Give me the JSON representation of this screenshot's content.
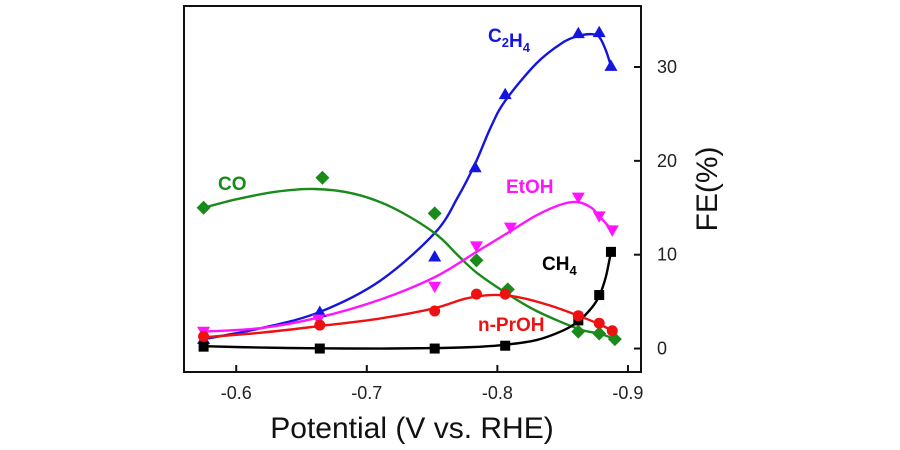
{
  "chart_data": {
    "type": "line",
    "xlabel": "Potential (V vs. RHE)",
    "ylabel": "FE(%)",
    "xlim": [
      -0.56,
      -0.91
    ],
    "ylim": [
      -2.5,
      36.5
    ],
    "x_ticks": [
      -0.6,
      -0.7,
      -0.8,
      -0.9
    ],
    "x_tick_labels": [
      "-0.6",
      "-0.7",
      "-0.8",
      "-0.9"
    ],
    "y_ticks": [
      0,
      10,
      20,
      30
    ],
    "y_tick_labels": [
      "0",
      "10",
      "20",
      "30"
    ],
    "y_axis_side": "right",
    "grid": false,
    "legend": "none (series labeled inline)",
    "series": [
      {
        "name": "C2H4",
        "label_main": "C",
        "label_parts": [
          {
            "t": "C",
            "sub": false
          },
          {
            "t": "2",
            "sub": true
          },
          {
            "t": "H",
            "sub": false
          },
          {
            "t": "4",
            "sub": true
          }
        ],
        "color": "#1515e0",
        "marker": "triangle-up",
        "x": [
          -0.575,
          -0.664,
          -0.752,
          -0.783,
          -0.806,
          -0.862,
          -0.878,
          -0.887
        ],
        "y": [
          1.0,
          3.9,
          9.8,
          19.3,
          27.1,
          33.6,
          33.7,
          30.1
        ],
        "fit_x": [
          -0.575,
          -0.62,
          -0.664,
          -0.71,
          -0.752,
          -0.77,
          -0.783,
          -0.795,
          -0.806,
          -0.83,
          -0.85,
          -0.862,
          -0.872,
          -0.878,
          -0.883,
          -0.887
        ],
        "fit_y": [
          1.0,
          2.2,
          3.9,
          7.2,
          12.3,
          16.2,
          19.7,
          23.6,
          26.4,
          30.4,
          32.6,
          33.3,
          33.5,
          33.2,
          31.8,
          30.1
        ]
      },
      {
        "name": "CO",
        "label_parts": [
          {
            "t": "CO",
            "sub": false
          }
        ],
        "color": "#1a8a1a",
        "marker": "diamond",
        "x": [
          -0.575,
          -0.666,
          -0.752,
          -0.784,
          -0.808,
          -0.862,
          -0.878,
          -0.89
        ],
        "y": [
          15.0,
          18.2,
          14.4,
          9.4,
          6.3,
          1.8,
          1.6,
          1.0
        ],
        "fit_x": [
          -0.575,
          -0.6,
          -0.63,
          -0.66,
          -0.69,
          -0.72,
          -0.752,
          -0.77,
          -0.784,
          -0.808,
          -0.83,
          -0.862,
          -0.878,
          -0.89
        ],
        "fit_y": [
          15.0,
          15.9,
          16.7,
          17.0,
          16.5,
          15.0,
          12.3,
          9.9,
          8.1,
          5.8,
          4.0,
          2.1,
          1.6,
          1.0
        ]
      },
      {
        "name": "EtOH",
        "label_parts": [
          {
            "t": "EtOH",
            "sub": false
          }
        ],
        "color": "#ff14ff",
        "marker": "triangle-down",
        "x": [
          -0.575,
          -0.663,
          -0.752,
          -0.784,
          -0.81,
          -0.862,
          -0.878,
          -0.888
        ],
        "y": [
          1.8,
          3.1,
          6.6,
          10.9,
          12.9,
          16.1,
          14.1,
          12.6
        ],
        "fit_x": [
          -0.575,
          -0.62,
          -0.663,
          -0.71,
          -0.752,
          -0.784,
          -0.81,
          -0.83,
          -0.85,
          -0.862,
          -0.872,
          -0.878,
          -0.888
        ],
        "fit_y": [
          1.8,
          2.2,
          3.3,
          5.2,
          7.6,
          10.3,
          12.5,
          14.2,
          15.4,
          15.6,
          15.0,
          14.1,
          12.6
        ]
      },
      {
        "name": "CH4",
        "label_parts": [
          {
            "t": "CH",
            "sub": false
          },
          {
            "t": "4",
            "sub": true
          }
        ],
        "color": "#000000",
        "marker": "square",
        "x": [
          -0.575,
          -0.664,
          -0.752,
          -0.806,
          -0.862,
          -0.878,
          -0.887
        ],
        "y": [
          0.2,
          0.0,
          0.0,
          0.3,
          3.0,
          5.7,
          10.3
        ],
        "fit_x": [
          -0.575,
          -0.62,
          -0.664,
          -0.71,
          -0.752,
          -0.78,
          -0.806,
          -0.83,
          -0.85,
          -0.862,
          -0.872,
          -0.878,
          -0.883,
          -0.887
        ],
        "fit_y": [
          0.25,
          0.1,
          0.02,
          0.0,
          0.05,
          0.15,
          0.4,
          0.9,
          1.9,
          2.9,
          4.3,
          5.6,
          7.6,
          10.3
        ]
      },
      {
        "name": "n-PrOH",
        "label_parts": [
          {
            "t": "n-PrOH",
            "sub": false
          }
        ],
        "color": "#ee1111",
        "marker": "circle",
        "x": [
          -0.575,
          -0.664,
          -0.752,
          -0.784,
          -0.806,
          -0.862,
          -0.878,
          -0.888
        ],
        "y": [
          1.3,
          2.5,
          4.0,
          5.8,
          5.8,
          3.5,
          2.7,
          1.9
        ],
        "fit_x": [
          -0.575,
          -0.62,
          -0.664,
          -0.71,
          -0.752,
          -0.775,
          -0.795,
          -0.815,
          -0.84,
          -0.862,
          -0.878,
          -0.888
        ],
        "fit_y": [
          1.2,
          1.7,
          2.4,
          3.2,
          4.3,
          5.3,
          5.7,
          5.5,
          4.6,
          3.5,
          2.6,
          1.9
        ]
      }
    ]
  }
}
